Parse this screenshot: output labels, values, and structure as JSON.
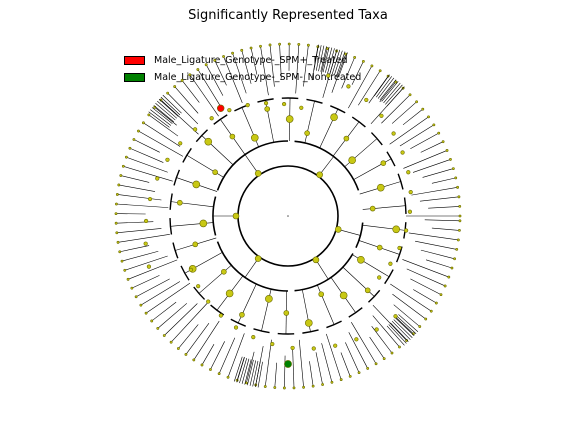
{
  "title": "Significantly Represented Taxa",
  "legend": [
    {
      "label": "Male_Ligature_Genotype-_SPM+_Treated",
      "color": "#ff0000"
    },
    {
      "label": "Male_Ligature_Genotype-_SPM-_Nontreated",
      "color": "#008000"
    }
  ],
  "colors": {
    "node": "#c8c814",
    "node_edge": "#6b6b00",
    "branch": "#000000"
  }
}
